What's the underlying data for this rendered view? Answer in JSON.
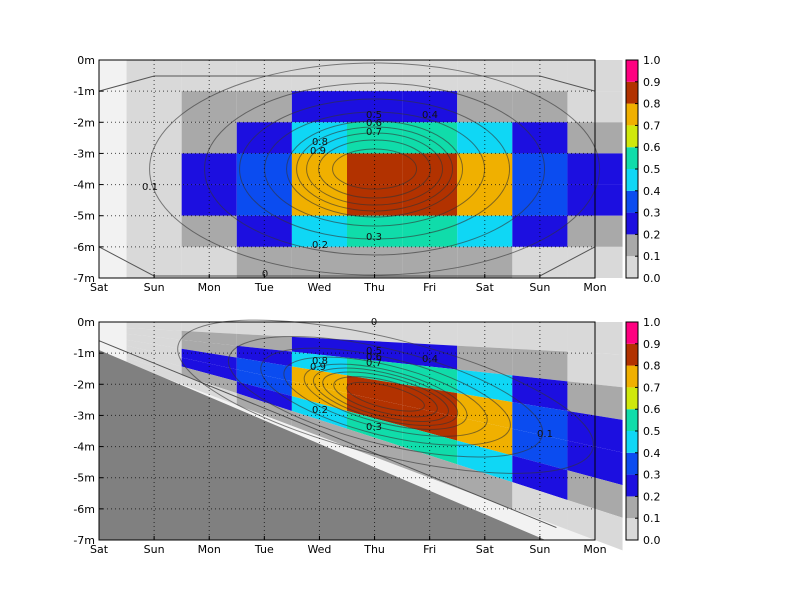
{
  "chart_data": [
    {
      "type": "heatmap",
      "panel": "top",
      "title": "",
      "xlabel": "",
      "ylabel": "",
      "x_ticks": [
        "Sat",
        "Sun",
        "Mon",
        "Tue",
        "Wed",
        "Thu",
        "Fri",
        "Sat",
        "Sun",
        "Mon"
      ],
      "y_ticks": [
        "0m",
        "-1m",
        "-2m",
        "-3m",
        "-4m",
        "-5m",
        "-6m",
        "-7m"
      ],
      "xlim": [
        0,
        9
      ],
      "ylim": [
        -7,
        0
      ],
      "grid": true,
      "x_centers": [
        0.5,
        1.5,
        2.5,
        3.5,
        4.5,
        5.5,
        6.5,
        7.5,
        8.5
      ],
      "y_centers": [
        -0.5,
        -1.5,
        -2.5,
        -3.5,
        -4.5,
        -5.5,
        -6.5
      ],
      "values": [
        [
          0.05,
          0.05,
          0.05,
          0.05,
          0.05,
          0.05,
          0.05,
          0.05,
          0.05
        ],
        [
          0.05,
          0.1,
          0.15,
          0.2,
          0.2,
          0.2,
          0.15,
          0.1,
          0.05
        ],
        [
          0.05,
          0.1,
          0.25,
          0.45,
          0.55,
          0.55,
          0.45,
          0.25,
          0.1
        ],
        [
          0.05,
          0.2,
          0.35,
          0.75,
          0.85,
          0.85,
          0.75,
          0.35,
          0.2
        ],
        [
          0.05,
          0.2,
          0.35,
          0.75,
          0.85,
          0.85,
          0.75,
          0.35,
          0.2
        ],
        [
          0.05,
          0.1,
          0.25,
          0.45,
          0.55,
          0.55,
          0.45,
          0.25,
          0.1
        ],
        [
          0.05,
          0.05,
          0.1,
          0.15,
          0.15,
          0.15,
          0.1,
          0.05,
          0.05
        ]
      ],
      "annotations": [
        "0.5",
        "0.6",
        "0.7",
        "0.8",
        "0.9",
        "0.4",
        "0.2",
        "0.3",
        "0.1",
        "0"
      ],
      "colorbar": {
        "ticks": [
          "0.0",
          "0.1",
          "0.2",
          "0.3",
          "0.4",
          "0.5",
          "0.6",
          "0.7",
          "0.8",
          "0.9",
          "1.0"
        ],
        "range": [
          0,
          1
        ]
      }
    },
    {
      "type": "heatmap",
      "panel": "bottom",
      "title": "",
      "xlabel": "",
      "ylabel": "",
      "x_ticks": [
        "Sat",
        "Sun",
        "Mon",
        "Tue",
        "Wed",
        "Thu",
        "Fri",
        "Sat",
        "Sun",
        "Mon"
      ],
      "y_ticks": [
        "0m",
        "-1m",
        "-2m",
        "-3m",
        "-4m",
        "-5m",
        "-6m",
        "-7m"
      ],
      "xlim": [
        0,
        9
      ],
      "ylim": [
        -7,
        0
      ],
      "grid": true,
      "note_sloped_bottom": "seafloor deepening toward the right",
      "values": [
        [
          0.05,
          0.05,
          0.05,
          0.05,
          0.05,
          0.05,
          0.05,
          0.05,
          0.05
        ],
        [
          0.05,
          0.1,
          0.15,
          0.2,
          0.2,
          0.2,
          0.15,
          0.1,
          0.05
        ],
        [
          0.05,
          0.1,
          0.25,
          0.45,
          0.55,
          0.55,
          0.45,
          0.25,
          0.1
        ],
        [
          0.05,
          0.2,
          0.35,
          0.75,
          0.85,
          0.85,
          0.75,
          0.35,
          0.2
        ],
        [
          0.05,
          0.2,
          0.35,
          0.75,
          0.85,
          0.85,
          0.75,
          0.35,
          0.2
        ],
        [
          0.05,
          0.1,
          0.25,
          0.45,
          0.55,
          0.55,
          0.45,
          0.25,
          0.1
        ],
        [
          0.05,
          0.05,
          0.1,
          0.15,
          0.15,
          0.15,
          0.1,
          0.05,
          0.05
        ]
      ],
      "annotations": [
        "0.5",
        "0.6",
        "0.7",
        "0.8",
        "0.9",
        "0.4",
        "0.2",
        "0.3",
        "0.1",
        "0"
      ],
      "colorbar": {
        "ticks": [
          "0.0",
          "0.1",
          "0.2",
          "0.3",
          "0.4",
          "0.5",
          "0.6",
          "0.7",
          "0.8",
          "0.9",
          "1.0"
        ],
        "range": [
          0,
          1
        ]
      }
    }
  ],
  "colormap": [
    "#d9d9d9",
    "#a9a9a9",
    "#1c0fe0",
    "#0b4cf0",
    "#0fd7f5",
    "#10dcaa",
    "#cfe80c",
    "#f0b000",
    "#b23200",
    "#b0005a",
    "#ff0080"
  ]
}
